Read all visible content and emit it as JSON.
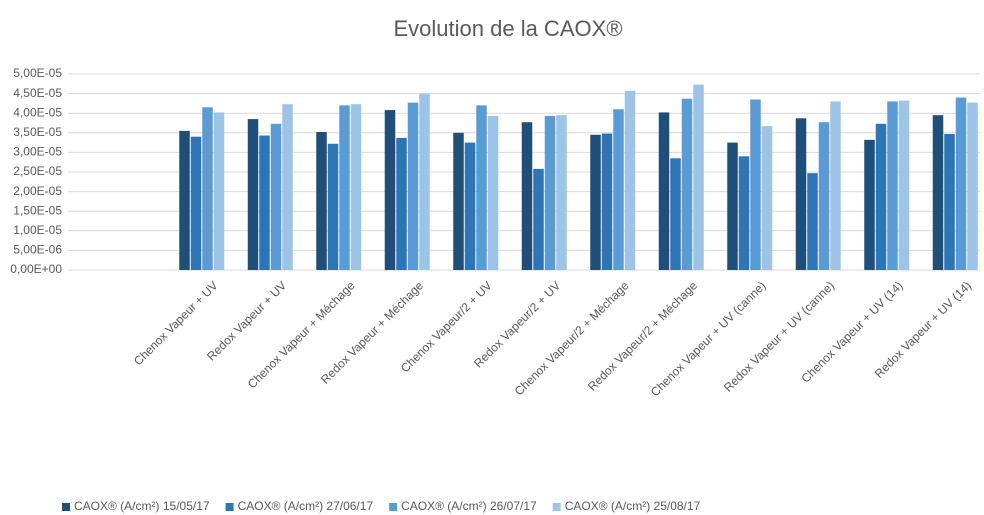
{
  "chart_data": {
    "type": "bar",
    "title": "Evolution de la CAOX®",
    "categories": [
      "Chenox Vapeur + UV",
      "Redox Vapeur + UV",
      "Chenox Vapeur + Méchage",
      "Redox Vapeur + Méchage",
      "Chenox Vapeur/2 + UV",
      "Redox Vapeur/2 + UV",
      "Chenox Vapeur/2 + Méchage",
      "Redox Vapeur/2 + Méchage",
      "Chenox Vapeur + UV (canne)",
      "Redox Vapeur + UV (canne)",
      "Chenox Vapeur + UV (14)",
      "Redox Vapeur + UV (14)"
    ],
    "series": [
      {
        "name": "CAOX® (A/cm²) 15/05/17",
        "color": "#1f4e79",
        "values": [
          3.55e-05,
          3.85e-05,
          3.52e-05,
          4.08e-05,
          3.5e-05,
          3.77e-05,
          3.45e-05,
          4.02e-05,
          3.25e-05,
          3.87e-05,
          3.32e-05,
          3.95e-05
        ]
      },
      {
        "name": "CAOX® (A/cm²) 27/06/17",
        "color": "#2e75b6",
        "values": [
          3.4e-05,
          3.43e-05,
          3.22e-05,
          3.37e-05,
          3.25e-05,
          2.58e-05,
          3.48e-05,
          2.85e-05,
          2.9e-05,
          2.47e-05,
          3.73e-05,
          3.47e-05
        ]
      },
      {
        "name": "CAOX® (A/cm²) 26/07/17",
        "color": "#5b9bd5",
        "values": [
          4.15e-05,
          3.73e-05,
          4.2e-05,
          4.27e-05,
          4.2e-05,
          3.93e-05,
          4.1e-05,
          4.37e-05,
          4.35e-05,
          3.77e-05,
          4.3e-05,
          4.4e-05
        ]
      },
      {
        "name": "CAOX® (A/cm²) 25/08/17",
        "color": "#9dc3e6",
        "values": [
          4.02e-05,
          4.23e-05,
          4.23e-05,
          4.5e-05,
          3.93e-05,
          3.95e-05,
          4.57e-05,
          4.73e-05,
          3.67e-05,
          4.3e-05,
          4.32e-05,
          4.27e-05
        ]
      }
    ],
    "ylim": [
      0,
      5e-05
    ],
    "yticks": [
      {
        "value": 0,
        "label": "0,00E+00"
      },
      {
        "value": 5e-06,
        "label": "5,00E-06"
      },
      {
        "value": 1e-05,
        "label": "1,00E-05"
      },
      {
        "value": 1.5e-05,
        "label": "1,50E-05"
      },
      {
        "value": 2e-05,
        "label": "2,00E-05"
      },
      {
        "value": 2.5e-05,
        "label": "2,50E-05"
      },
      {
        "value": 3e-05,
        "label": "3,00E-05"
      },
      {
        "value": 3.5e-05,
        "label": "3,50E-05"
      },
      {
        "value": 4e-05,
        "label": "4,00E-05"
      },
      {
        "value": 4.5e-05,
        "label": "4,50E-05"
      },
      {
        "value": 5e-05,
        "label": "5,00E-05"
      }
    ],
    "grid": true,
    "legend": "bottom"
  }
}
